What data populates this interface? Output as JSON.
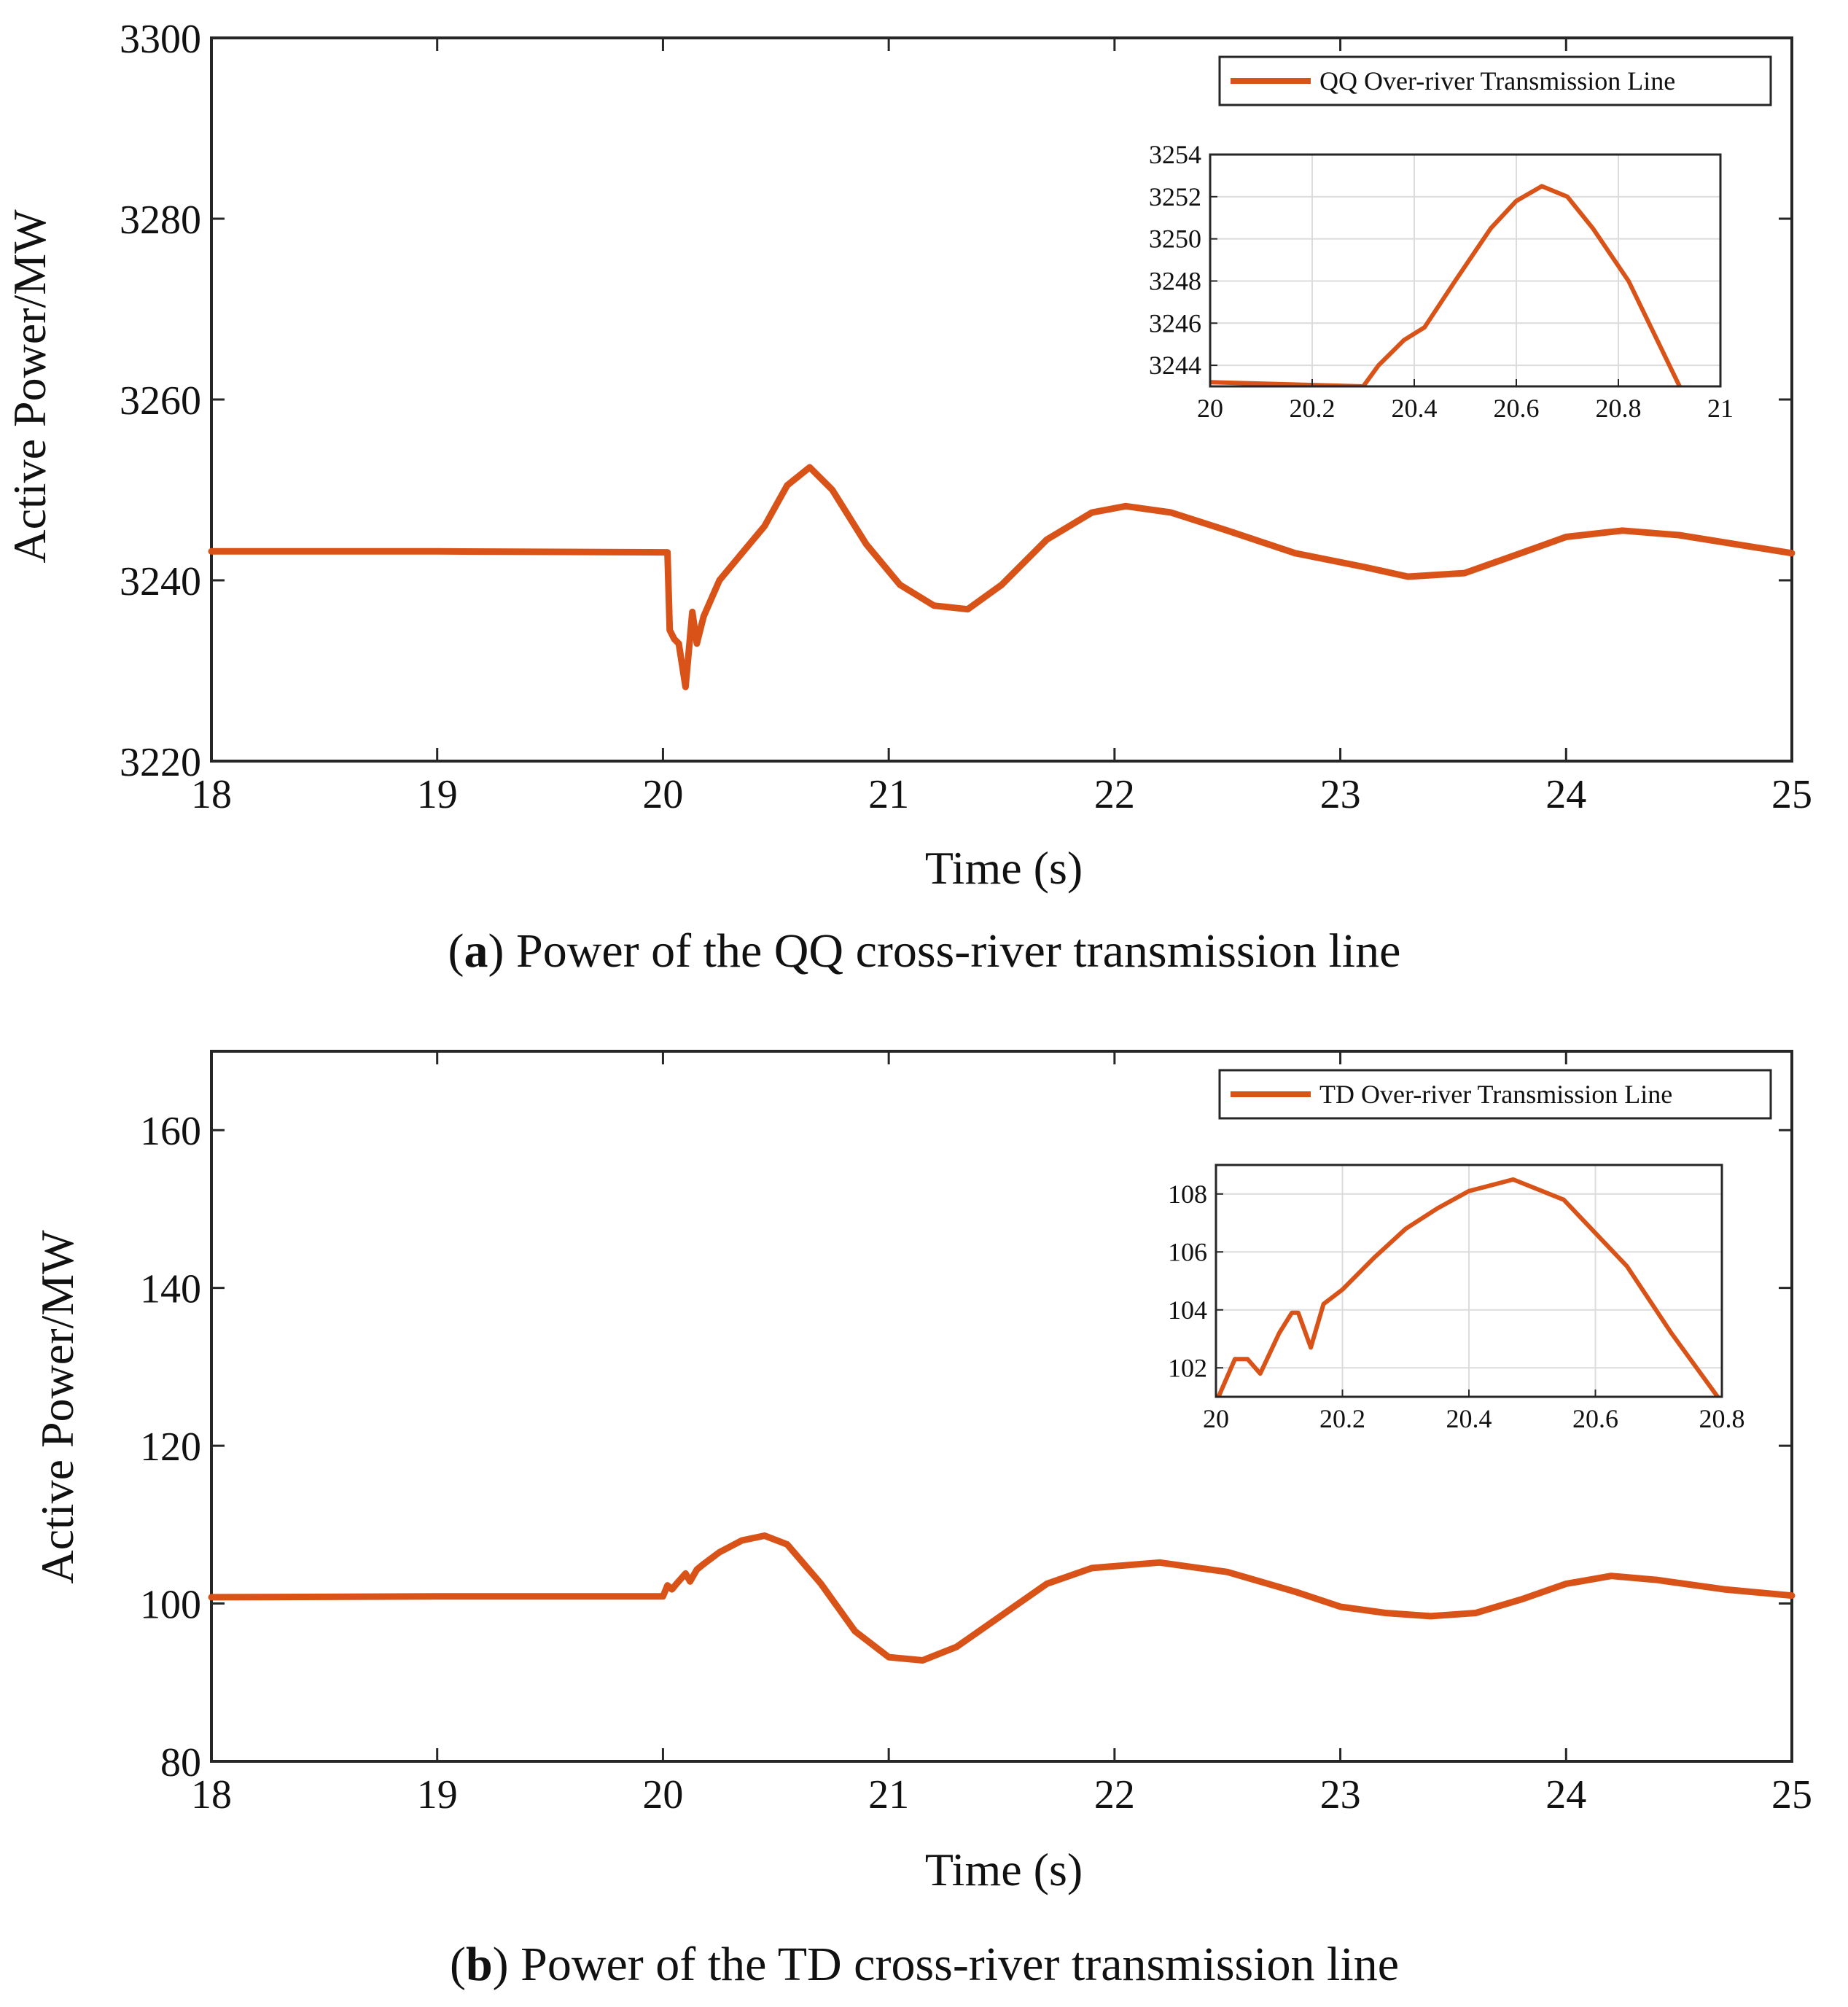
{
  "figure": {
    "caption_a": {
      "label": "a",
      "text": "Power of the QQ cross-river transmission line"
    },
    "caption_b": {
      "label": "b",
      "text": "Power of the TD cross-river transmission line"
    }
  },
  "colors": {
    "series": "#D95319",
    "grid": "#DCDCDC",
    "axis": "#262626"
  },
  "chart_data": [
    {
      "id": "a",
      "type": "line",
      "xlabel": "Time (s)",
      "ylabel": "Active Power/MW",
      "xlim": [
        18,
        25
      ],
      "ylim": [
        3220,
        3300
      ],
      "xticks": [
        18,
        19,
        20,
        21,
        22,
        23,
        24,
        25
      ],
      "yticks": [
        3220,
        3240,
        3260,
        3280,
        3300
      ],
      "grid": true,
      "legend": {
        "placement": "top-right",
        "entries": [
          "QQ Over-river Transmission Line"
        ]
      },
      "series": [
        {
          "name": "QQ Over-river Transmission Line",
          "x": [
            18,
            19,
            20,
            20.02,
            20.03,
            20.05,
            20.07,
            20.1,
            20.13,
            20.15,
            20.18,
            20.25,
            20.35,
            20.45,
            20.55,
            20.65,
            20.75,
            20.9,
            21.05,
            21.2,
            21.35,
            21.5,
            21.7,
            21.9,
            22.05,
            22.25,
            22.5,
            22.8,
            23.1,
            23.3,
            23.55,
            23.8,
            24.0,
            24.25,
            24.5,
            24.8,
            25.0
          ],
          "y": [
            3243.2,
            3243.2,
            3243.1,
            3243.1,
            3234.5,
            3233.5,
            3233.0,
            3228.2,
            3236.5,
            3233.0,
            3236.0,
            3240.0,
            3243.0,
            3246.0,
            3250.5,
            3252.5,
            3250.0,
            3244.0,
            3239.5,
            3237.2,
            3236.8,
            3239.5,
            3244.5,
            3247.5,
            3248.2,
            3247.5,
            3245.5,
            3243.0,
            3241.5,
            3240.4,
            3240.8,
            3243.0,
            3244.8,
            3245.5,
            3245.0,
            3243.8,
            3243.0
          ]
        }
      ],
      "inset": {
        "xlim": [
          20,
          21
        ],
        "ylim": [
          3243,
          3254
        ],
        "xticks": [
          20,
          20.2,
          20.4,
          20.6,
          20.8,
          21
        ],
        "yticks": [
          3244,
          3246,
          3248,
          3250,
          3252,
          3254
        ],
        "series": {
          "x": [
            20,
            20.3,
            20.33,
            20.38,
            20.42,
            20.48,
            20.55,
            20.6,
            20.65,
            20.7,
            20.75,
            20.82,
            20.88,
            20.92
          ],
          "y": [
            3243.2,
            3243.0,
            3244.0,
            3245.2,
            3245.8,
            3248.0,
            3250.5,
            3251.8,
            3252.5,
            3252.0,
            3250.5,
            3248.0,
            3245.0,
            3243.0
          ]
        }
      }
    },
    {
      "id": "b",
      "type": "line",
      "xlabel": "Time (s)",
      "ylabel": "Active Power/MW",
      "xlim": [
        18,
        25
      ],
      "ylim": [
        80,
        170
      ],
      "xticks": [
        18,
        19,
        20,
        21,
        22,
        23,
        24,
        25
      ],
      "yticks": [
        80,
        100,
        120,
        140,
        160
      ],
      "grid": true,
      "legend": {
        "placement": "top-right",
        "entries": [
          "TD Over-river Transmission Line"
        ]
      },
      "series": [
        {
          "name": "TD Over-river Transmission Line",
          "x": [
            18,
            19,
            20,
            20.02,
            20.04,
            20.06,
            20.1,
            20.12,
            20.15,
            20.18,
            20.25,
            20.35,
            20.45,
            20.55,
            20.7,
            20.85,
            21.0,
            21.15,
            21.3,
            21.5,
            21.7,
            21.9,
            22.2,
            22.5,
            22.8,
            23.0,
            23.2,
            23.4,
            23.6,
            23.8,
            24.0,
            24.2,
            24.4,
            24.7,
            25.0
          ],
          "y": [
            100.8,
            100.9,
            100.9,
            102.3,
            101.8,
            102.5,
            103.8,
            102.8,
            104.3,
            105.0,
            106.5,
            108.0,
            108.6,
            107.5,
            102.5,
            96.5,
            93.2,
            92.8,
            94.5,
            98.5,
            102.5,
            104.5,
            105.2,
            104.0,
            101.5,
            99.6,
            98.8,
            98.4,
            98.8,
            100.5,
            102.5,
            103.5,
            103.0,
            101.8,
            101.0
          ]
        }
      ],
      "inset": {
        "xlim": [
          20,
          20.8
        ],
        "ylim": [
          101,
          109
        ],
        "xticks": [
          20,
          20.2,
          20.4,
          20.6,
          20.8
        ],
        "yticks": [
          102,
          104,
          106,
          108
        ],
        "series": {
          "x": [
            20,
            20.03,
            20.05,
            20.07,
            20.1,
            20.12,
            20.13,
            20.15,
            20.17,
            20.2,
            20.25,
            20.3,
            20.35,
            20.4,
            20.47,
            20.55,
            20.65,
            20.72,
            20.8
          ],
          "y": [
            100.8,
            102.3,
            102.3,
            101.8,
            103.2,
            103.9,
            103.9,
            102.7,
            104.2,
            104.7,
            105.8,
            106.8,
            107.5,
            108.1,
            108.5,
            107.8,
            105.5,
            103.2,
            100.8
          ]
        }
      }
    }
  ]
}
